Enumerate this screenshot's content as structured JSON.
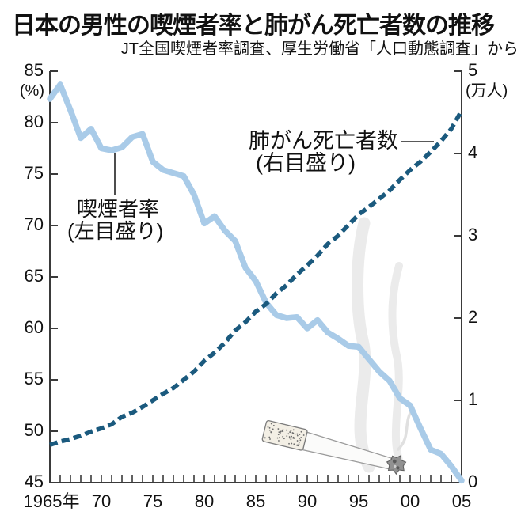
{
  "header": {
    "title": "日本の男性の喫煙者率と肺がん死亡者数の推移",
    "subtitle": "JT全国喫煙者率調査、厚生労働省「人口動態調査」から"
  },
  "chart_data": {
    "type": "line",
    "title": "日本の男性の喫煙者率と肺がん死亡者数の推移",
    "source_note": "JT全国喫煙者率調査、厚生労働省「人口動態調査」から",
    "x_range": [
      1965,
      2005
    ],
    "x_minor_tick_interval": 1,
    "x_tick_years": [
      1965,
      1970,
      1975,
      1980,
      1985,
      1990,
      1995,
      2000,
      2005
    ],
    "x_tick_labels": [
      "1965年",
      "70",
      "75",
      "80",
      "85",
      "90",
      "95",
      "00",
      "05"
    ],
    "left_axis": {
      "label": "(%)",
      "ticks": [
        85,
        80,
        75,
        70,
        65,
        60,
        55,
        50,
        45
      ],
      "range": [
        45,
        85
      ]
    },
    "right_axis": {
      "label": "(万人)",
      "ticks": [
        5,
        4,
        3,
        2,
        1,
        0
      ],
      "range": [
        0,
        5
      ]
    },
    "grid": false,
    "legend": "inline-annotations",
    "years": [
      1965,
      1966,
      1967,
      1968,
      1969,
      1970,
      1971,
      1972,
      1973,
      1974,
      1975,
      1976,
      1977,
      1978,
      1979,
      1980,
      1981,
      1982,
      1983,
      1984,
      1985,
      1986,
      1987,
      1988,
      1989,
      1990,
      1991,
      1992,
      1993,
      1994,
      1995,
      1996,
      1997,
      1998,
      1999,
      2000,
      2001,
      2002,
      2003,
      2004,
      2005
    ],
    "series": [
      {
        "name": "喫煙者率（左目盛り）",
        "axis": "left",
        "style": "solid",
        "color": "#a9cbe8",
        "values": [
          82.3,
          83.7,
          81.2,
          78.5,
          79.4,
          77.5,
          77.3,
          77.6,
          78.6,
          78.9,
          76.2,
          75.4,
          75.1,
          74.8,
          73.0,
          70.2,
          70.9,
          69.5,
          68.5,
          65.9,
          64.6,
          62.5,
          61.3,
          61.0,
          61.1,
          60.0,
          60.8,
          59.6,
          59.0,
          58.3,
          58.2,
          57.0,
          55.8,
          54.9,
          53.2,
          52.5,
          50.3,
          48.2,
          47.8,
          46.6,
          45.2
        ]
      },
      {
        "name": "肺がん死亡者数（右目盛り）",
        "axis": "right",
        "style": "dashed",
        "color": "#1b5a7e",
        "values": [
          0.46,
          0.5,
          0.53,
          0.57,
          0.62,
          0.66,
          0.71,
          0.8,
          0.85,
          0.92,
          1.0,
          1.08,
          1.15,
          1.25,
          1.35,
          1.48,
          1.58,
          1.7,
          1.85,
          1.95,
          2.08,
          2.17,
          2.3,
          2.4,
          2.53,
          2.64,
          2.76,
          2.9,
          3.0,
          3.13,
          3.26,
          3.35,
          3.45,
          3.55,
          3.68,
          3.8,
          3.9,
          4.02,
          4.15,
          4.3,
          4.52
        ]
      }
    ],
    "annotations": {
      "smoking": {
        "line1": "喫煙者率",
        "line2": "(左目盛り)"
      },
      "deaths": {
        "line1": "肺がん死亡者数",
        "line2": "(右目盛り)"
      }
    },
    "colors": {
      "axis": "#3a3a3a",
      "smoking_line": "#a9cbe8",
      "deaths_line": "#1b5a7e",
      "smoke": "#ebebeb"
    }
  }
}
